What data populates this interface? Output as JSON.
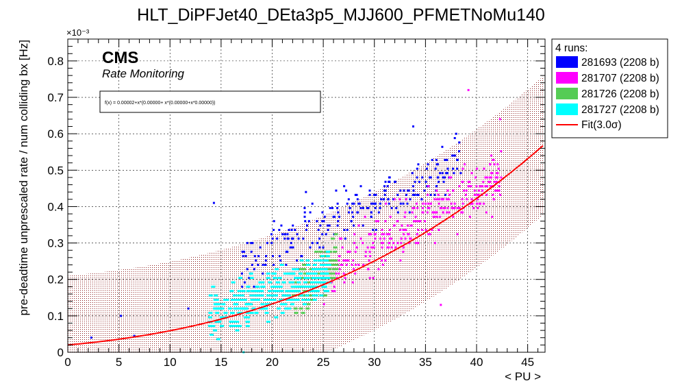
{
  "chart_data": {
    "type": "scatter",
    "title": "HLT_DiPFJet40_DEta3p5_MJJ600_PFMETNoMu140",
    "xlabel": "< PU >",
    "ylabel": "pre-deadtime unprescaled rate / num colliding bx [Hz]",
    "y_exponent": "×10⁻³",
    "xlim": [
      0,
      46.7
    ],
    "ylim": [
      0,
      0.00086
    ],
    "x_ticks": [
      0,
      5,
      10,
      15,
      20,
      25,
      30,
      35,
      40,
      45
    ],
    "y_ticks": [
      0,
      0.0001,
      0.0002,
      0.0003,
      0.0004,
      0.0005,
      0.0006,
      0.0007,
      0.0008
    ],
    "y_tick_labels": [
      "0",
      "0.1",
      "0.2",
      "0.3",
      "0.4",
      "0.5",
      "0.6",
      "0.7",
      "0.8"
    ],
    "grid": true,
    "cms_label": "CMS",
    "sub_label": "Rate Monitoring",
    "formula": "f(x) = 0.00002+x*(0.00000+ x*(0.00000+x*0.00000))",
    "legend_placement": "outside-right",
    "legend_header": "4 runs:",
    "fit": {
      "label": "Fit(3.0σ)",
      "color": "#ff0000",
      "coeffs": [
        2e-05,
        2.5e-06,
        1.25e-07,
        1.6e-09
      ],
      "band_sigma": 3.0,
      "band_halfwidth": 0.00019,
      "band_color": "#8b1a1a"
    },
    "series": [
      {
        "name": "281693 (2208 b)",
        "color": "#0000ff",
        "x_range": [
          17,
          38.5
        ],
        "y_center_at": [
          [
            17,
            0.00024
          ],
          [
            38,
            0.00052
          ]
        ],
        "spread": 7e-05,
        "count": 260
      },
      {
        "name": "281707 (2208 b)",
        "color": "#ff00ff",
        "x_range": [
          25,
          42.5
        ],
        "y_center_at": [
          [
            25,
            0.00021
          ],
          [
            42,
            0.00048
          ]
        ],
        "spread": 7.5e-05,
        "count": 330
      },
      {
        "name": "281726 (2208 b)",
        "color": "#55cc55",
        "x_range": [
          22,
          26.2
        ],
        "y_center_at": [
          [
            22,
            0.00014
          ],
          [
            26,
            0.00026
          ]
        ],
        "spread": 6e-05,
        "count": 110
      },
      {
        "name": "281727 (2208 b)",
        "color": "#00ffff",
        "x_range": [
          13.8,
          25.5
        ],
        "y_center_at": [
          [
            13.8,
            0.0001
          ],
          [
            25.5,
            0.00022
          ]
        ],
        "spread": 6.5e-05,
        "count": 300
      }
    ],
    "outliers": [
      {
        "x": 14.3,
        "y": 0.00041,
        "series": 0
      },
      {
        "x": 39.2,
        "y": 0.00072,
        "series": 1
      },
      {
        "x": 6.5,
        "y": 4.5e-05,
        "series": 0
      },
      {
        "x": 2.3,
        "y": 4e-05,
        "series": 0
      },
      {
        "x": 5.2,
        "y": 0.0001,
        "series": 0
      },
      {
        "x": 11.8,
        "y": 0.00012,
        "series": 0
      },
      {
        "x": 17.2,
        "y": 0.0,
        "series": 3
      },
      {
        "x": 33.8,
        "y": 0.00062,
        "series": 0
      },
      {
        "x": 23.3,
        "y": 0.00044,
        "series": 0
      },
      {
        "x": 42.3,
        "y": 0.00064,
        "series": 1
      },
      {
        "x": 36.5,
        "y": 0.00013,
        "series": 1
      }
    ]
  }
}
